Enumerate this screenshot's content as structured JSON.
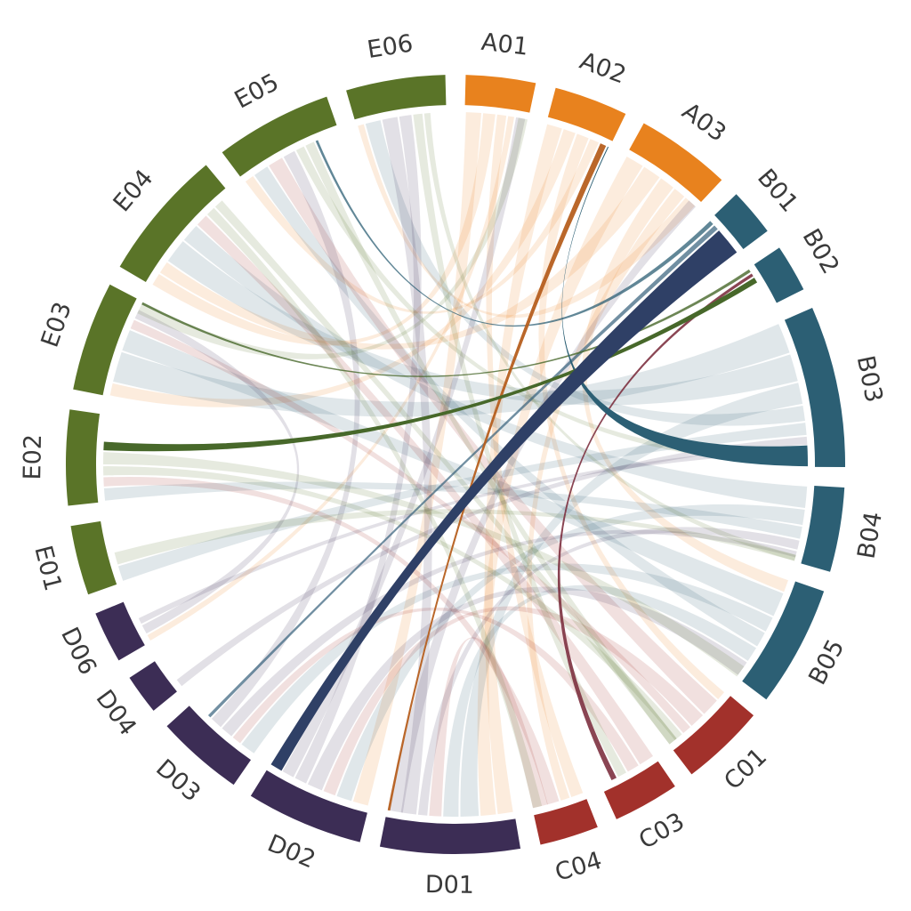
{
  "figure": {
    "background": "#ffffff",
    "label_color": "#3a3a3a"
  },
  "chart_data": {
    "type": "chord",
    "title": "",
    "legend": "none",
    "groups": {
      "A": {
        "color": "#E8821E"
      },
      "B": {
        "color": "#2C5F74"
      },
      "C": {
        "color": "#A2312B"
      },
      "D": {
        "color": "#3C2D55"
      },
      "E": {
        "color": "#5A7428"
      }
    },
    "segments": [
      {
        "id": "A01",
        "label": "A01",
        "group": "A",
        "size": 10.4
      },
      {
        "id": "A02",
        "label": "A02",
        "group": "A",
        "size": 11.0
      },
      {
        "id": "A03",
        "label": "A03",
        "group": "A",
        "size": 14.2
      },
      {
        "id": "B01",
        "label": "B01",
        "group": "B",
        "size": 7.1
      },
      {
        "id": "B02",
        "label": "B02",
        "group": "B",
        "size": 7.1
      },
      {
        "id": "B03",
        "label": "B03",
        "group": "B",
        "size": 24.1
      },
      {
        "id": "B04",
        "label": "B04",
        "group": "B",
        "size": 12.6
      },
      {
        "id": "B05",
        "label": "B05",
        "group": "B",
        "size": 18.1
      },
      {
        "id": "C01",
        "label": "C01",
        "group": "C",
        "size": 12.6
      },
      {
        "id": "C03",
        "label": "C03",
        "group": "C",
        "size": 9.9
      },
      {
        "id": "C04",
        "label": "C04",
        "group": "C",
        "size": 8.8
      },
      {
        "id": "D01",
        "label": "D01",
        "group": "D",
        "size": 20.8
      },
      {
        "id": "D02",
        "label": "D02",
        "group": "D",
        "size": 17.5
      },
      {
        "id": "D03",
        "label": "D03",
        "group": "D",
        "size": 13.1
      },
      {
        "id": "D04",
        "label": "D04",
        "group": "D",
        "size": 6.0
      },
      {
        "id": "D06",
        "label": "D06",
        "group": "D",
        "size": 7.7
      },
      {
        "id": "E01",
        "label": "E01",
        "group": "E",
        "size": 10.4
      },
      {
        "id": "E02",
        "label": "E02",
        "group": "E",
        "size": 14.2
      },
      {
        "id": "E03",
        "label": "E03",
        "group": "E",
        "size": 16.4
      },
      {
        "id": "E04",
        "label": "E04",
        "group": "E",
        "size": 19.7
      },
      {
        "id": "E05",
        "label": "E05",
        "group": "E",
        "size": 17.5
      },
      {
        "id": "E06",
        "label": "E06",
        "group": "E",
        "size": 14.8
      }
    ],
    "ribbons": [
      {
        "src": "A01",
        "dst": "D02",
        "ws": 2.5,
        "wd": 2.5
      },
      {
        "src": "A01",
        "dst": "E04",
        "ws": 2.0,
        "wd": 2.0
      },
      {
        "src": "A01",
        "dst": "C04",
        "ws": 1.5,
        "wd": 2.0
      },
      {
        "src": "A01",
        "dst": "D06",
        "ws": 1.0,
        "wd": 1.0
      },
      {
        "src": "A02",
        "dst": "D01",
        "ws": 2.5,
        "wd": 2.5
      },
      {
        "src": "A02",
        "dst": "E03",
        "ws": 2.0,
        "wd": 2.0
      },
      {
        "src": "A02",
        "dst": "C01",
        "ws": 2.0,
        "wd": 1.5
      },
      {
        "src": "A02",
        "dst": "E05",
        "ws": 1.5,
        "wd": 1.5
      },
      {
        "src": "A03",
        "dst": "D01",
        "ws": 3.0,
        "wd": 2.5
      },
      {
        "src": "A03",
        "dst": "E04",
        "ws": 3.0,
        "wd": 2.0
      },
      {
        "src": "A03",
        "dst": "B05",
        "ws": 2.5,
        "wd": 2.0
      },
      {
        "src": "A03",
        "dst": "C04",
        "ws": 2.0,
        "wd": 1.5
      },
      {
        "src": "A03",
        "dst": "E06",
        "ws": 2.0,
        "wd": 1.0
      },
      {
        "src": "B03",
        "dst": "E03",
        "ws": 5.0,
        "wd": 5.0
      },
      {
        "src": "B03",
        "dst": "E04",
        "ws": 4.5,
        "wd": 4.0
      },
      {
        "src": "B03",
        "dst": "D01",
        "ws": 3.5,
        "wd": 3.0
      },
      {
        "src": "B03",
        "dst": "E06",
        "ws": 2.5,
        "wd": 2.5
      },
      {
        "src": "B03",
        "dst": "E01",
        "ws": 2.0,
        "wd": 2.5
      },
      {
        "src": "B04",
        "dst": "E04",
        "ws": 3.5,
        "wd": 3.0
      },
      {
        "src": "B04",
        "dst": "D02",
        "ws": 2.5,
        "wd": 2.5
      },
      {
        "src": "B04",
        "dst": "E02",
        "ws": 2.0,
        "wd": 2.0
      },
      {
        "src": "B05",
        "dst": "E03",
        "ws": 4.0,
        "wd": 3.5
      },
      {
        "src": "B05",
        "dst": "D03",
        "ws": 2.5,
        "wd": 2.5
      },
      {
        "src": "B05",
        "dst": "E05",
        "ws": 2.5,
        "wd": 2.5
      },
      {
        "src": "B05",
        "dst": "D01",
        "ws": 2.5,
        "wd": 2.5
      },
      {
        "src": "C01",
        "dst": "E05",
        "ws": 3.0,
        "wd": 2.5
      },
      {
        "src": "C01",
        "dst": "D02",
        "ws": 2.5,
        "wd": 2.0
      },
      {
        "src": "C01",
        "dst": "E03",
        "ws": 1.5,
        "wd": 1.5
      },
      {
        "src": "C03",
        "dst": "E04",
        "ws": 2.5,
        "wd": 2.0
      },
      {
        "src": "C03",
        "dst": "D03",
        "ws": 2.0,
        "wd": 1.5
      },
      {
        "src": "C04",
        "dst": "E02",
        "ws": 2.0,
        "wd": 1.5
      },
      {
        "src": "C04",
        "dst": "D01",
        "ws": 2.5,
        "wd": 2.0
      },
      {
        "src": "D01",
        "dst": "B04",
        "ws": 1.5,
        "wd": 1.5
      },
      {
        "src": "D01",
        "dst": "E06",
        "ws": 2.5,
        "wd": 2.5
      },
      {
        "src": "D01",
        "dst": "A03",
        "ws": 2.5,
        "wd": 1.5
      },
      {
        "src": "D02",
        "dst": "B05",
        "ws": 2.5,
        "wd": 2.5
      },
      {
        "src": "D02",
        "dst": "E06",
        "ws": 2.0,
        "wd": 2.0
      },
      {
        "src": "D02",
        "dst": "A01",
        "ws": 2.0,
        "wd": 1.5
      },
      {
        "src": "D03",
        "dst": "B04",
        "ws": 2.0,
        "wd": 1.0
      },
      {
        "src": "D03",
        "dst": "E05",
        "ws": 2.0,
        "wd": 2.0
      },
      {
        "src": "D04",
        "dst": "B03",
        "ws": 1.3,
        "wd": 1.3
      },
      {
        "src": "D06",
        "dst": "E03",
        "ws": 1.5,
        "wd": 1.5
      },
      {
        "src": "D06",
        "dst": "B03",
        "ws": 1.0,
        "wd": 1.0
      },
      {
        "src": "E01",
        "dst": "B04",
        "ws": 2.0,
        "wd": 1.0
      },
      {
        "src": "E02",
        "dst": "C01",
        "ws": 1.5,
        "wd": 1.5
      },
      {
        "src": "E02",
        "dst": "B05",
        "ws": 2.0,
        "wd": 2.0
      },
      {
        "src": "E03",
        "dst": "A01",
        "ws": 2.0,
        "wd": 1.5
      },
      {
        "src": "E04",
        "dst": "C04",
        "ws": 1.5,
        "wd": 1.5
      },
      {
        "src": "E04",
        "dst": "C01",
        "ws": 1.5,
        "wd": 1.5
      },
      {
        "src": "E05",
        "dst": "B03",
        "ws": 1.4,
        "wd": 1.4
      },
      {
        "src": "E05",
        "dst": "C01",
        "ws": 1.5,
        "wd": 1.5
      },
      {
        "src": "E06",
        "dst": "C03",
        "ws": 1.5,
        "wd": 1.5
      },
      {
        "src": "E06",
        "dst": "B04",
        "ws": 1.0,
        "wd": 1.0
      }
    ],
    "highlight_ribbons": [
      {
        "src": "B01",
        "dst": "E05",
        "ws": 0.7,
        "wd": 0.4,
        "color": "#2C5F74",
        "opacity": 0.75
      },
      {
        "src": "B01",
        "dst": "D03",
        "ws": 0.8,
        "wd": 0.5,
        "color": "#35607A",
        "opacity": 0.7
      },
      {
        "src": "B02",
        "dst": "E03",
        "ws": 0.5,
        "wd": 0.4,
        "color": "#47682A",
        "opacity": 0.8
      },
      {
        "src": "C03",
        "dst": "B02",
        "ws": 0.9,
        "wd": 0.5,
        "color": "#7D3140",
        "opacity": 0.9
      },
      {
        "src": "A02",
        "dst": "D01",
        "ws": 1.0,
        "wd": 0.4,
        "color": "#B65F1F",
        "opacity": 0.95
      },
      {
        "src": "B03",
        "dst": "A02",
        "ws": 3.4,
        "wd": 0.15,
        "color": "#2C5F74",
        "opacity": 1.0
      },
      {
        "src": "E02",
        "dst": "B02",
        "ws": 1.4,
        "wd": 0.9,
        "color": "#47682A",
        "opacity": 1.0
      },
      {
        "src": "D02",
        "dst": "B01",
        "ws": 2.0,
        "wd": 4.6,
        "color": "#2F4066",
        "opacity": 1.0
      }
    ],
    "light_ribbon_opacity": 0.15,
    "layout_hints": {
      "gap_deg": 3,
      "start_deg": 1.5,
      "direction": "clockwise",
      "label_style": "tangential-flipped"
    }
  }
}
